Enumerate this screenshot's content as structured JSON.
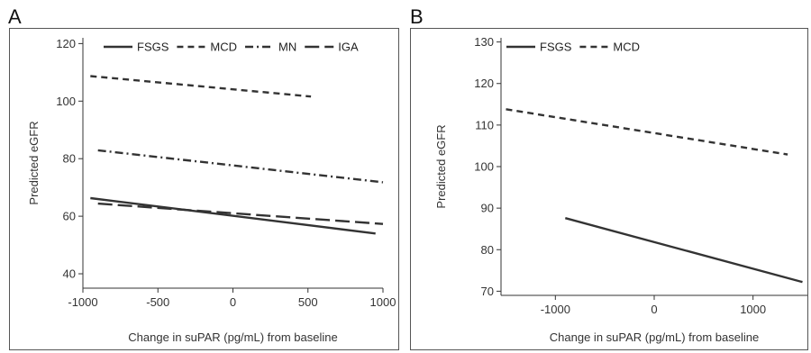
{
  "chart_data": [
    {
      "panel_letter": "A",
      "type": "line",
      "xlabel": "Change in suPAR (pg/mL) from baseline",
      "ylabel": "Predicted eGFR",
      "xlim": [
        -1000,
        1000
      ],
      "ylim": [
        35,
        122
      ],
      "xticks": [
        -1000,
        -500,
        0,
        500,
        1000
      ],
      "yticks": [
        40,
        60,
        80,
        100,
        120
      ],
      "grid": false,
      "legend_position": "top",
      "series": [
        {
          "name": "FSGS",
          "dash": "solid",
          "x": [
            -950,
            950
          ],
          "y": [
            66.3,
            54.0
          ]
        },
        {
          "name": "MCD",
          "dash": "dash",
          "x": [
            -950,
            520
          ],
          "y": [
            108.7,
            101.6
          ]
        },
        {
          "name": "MN",
          "dash": "dashdot",
          "x": [
            -900,
            1000
          ],
          "y": [
            82.9,
            71.8
          ]
        },
        {
          "name": "IGA",
          "dash": "longdash",
          "x": [
            -900,
            1000
          ],
          "y": [
            64.4,
            57.3
          ]
        }
      ]
    },
    {
      "panel_letter": "B",
      "type": "line",
      "xlabel": "Change in suPAR (pg/mL) from baseline",
      "ylabel": "Predicted eGFR",
      "xlim": [
        -1550,
        1550
      ],
      "ylim": [
        69,
        131
      ],
      "xticks": [
        -1000,
        0,
        1000
      ],
      "yticks": [
        70,
        80,
        90,
        100,
        110,
        120,
        130
      ],
      "grid": false,
      "legend_position": "top",
      "series": [
        {
          "name": "FSGS",
          "dash": "solid",
          "x": [
            -900,
            1500
          ],
          "y": [
            87.6,
            72.2
          ]
        },
        {
          "name": "MCD",
          "dash": "dash",
          "x": [
            -1500,
            1350
          ],
          "y": [
            113.8,
            102.9
          ]
        }
      ]
    }
  ]
}
